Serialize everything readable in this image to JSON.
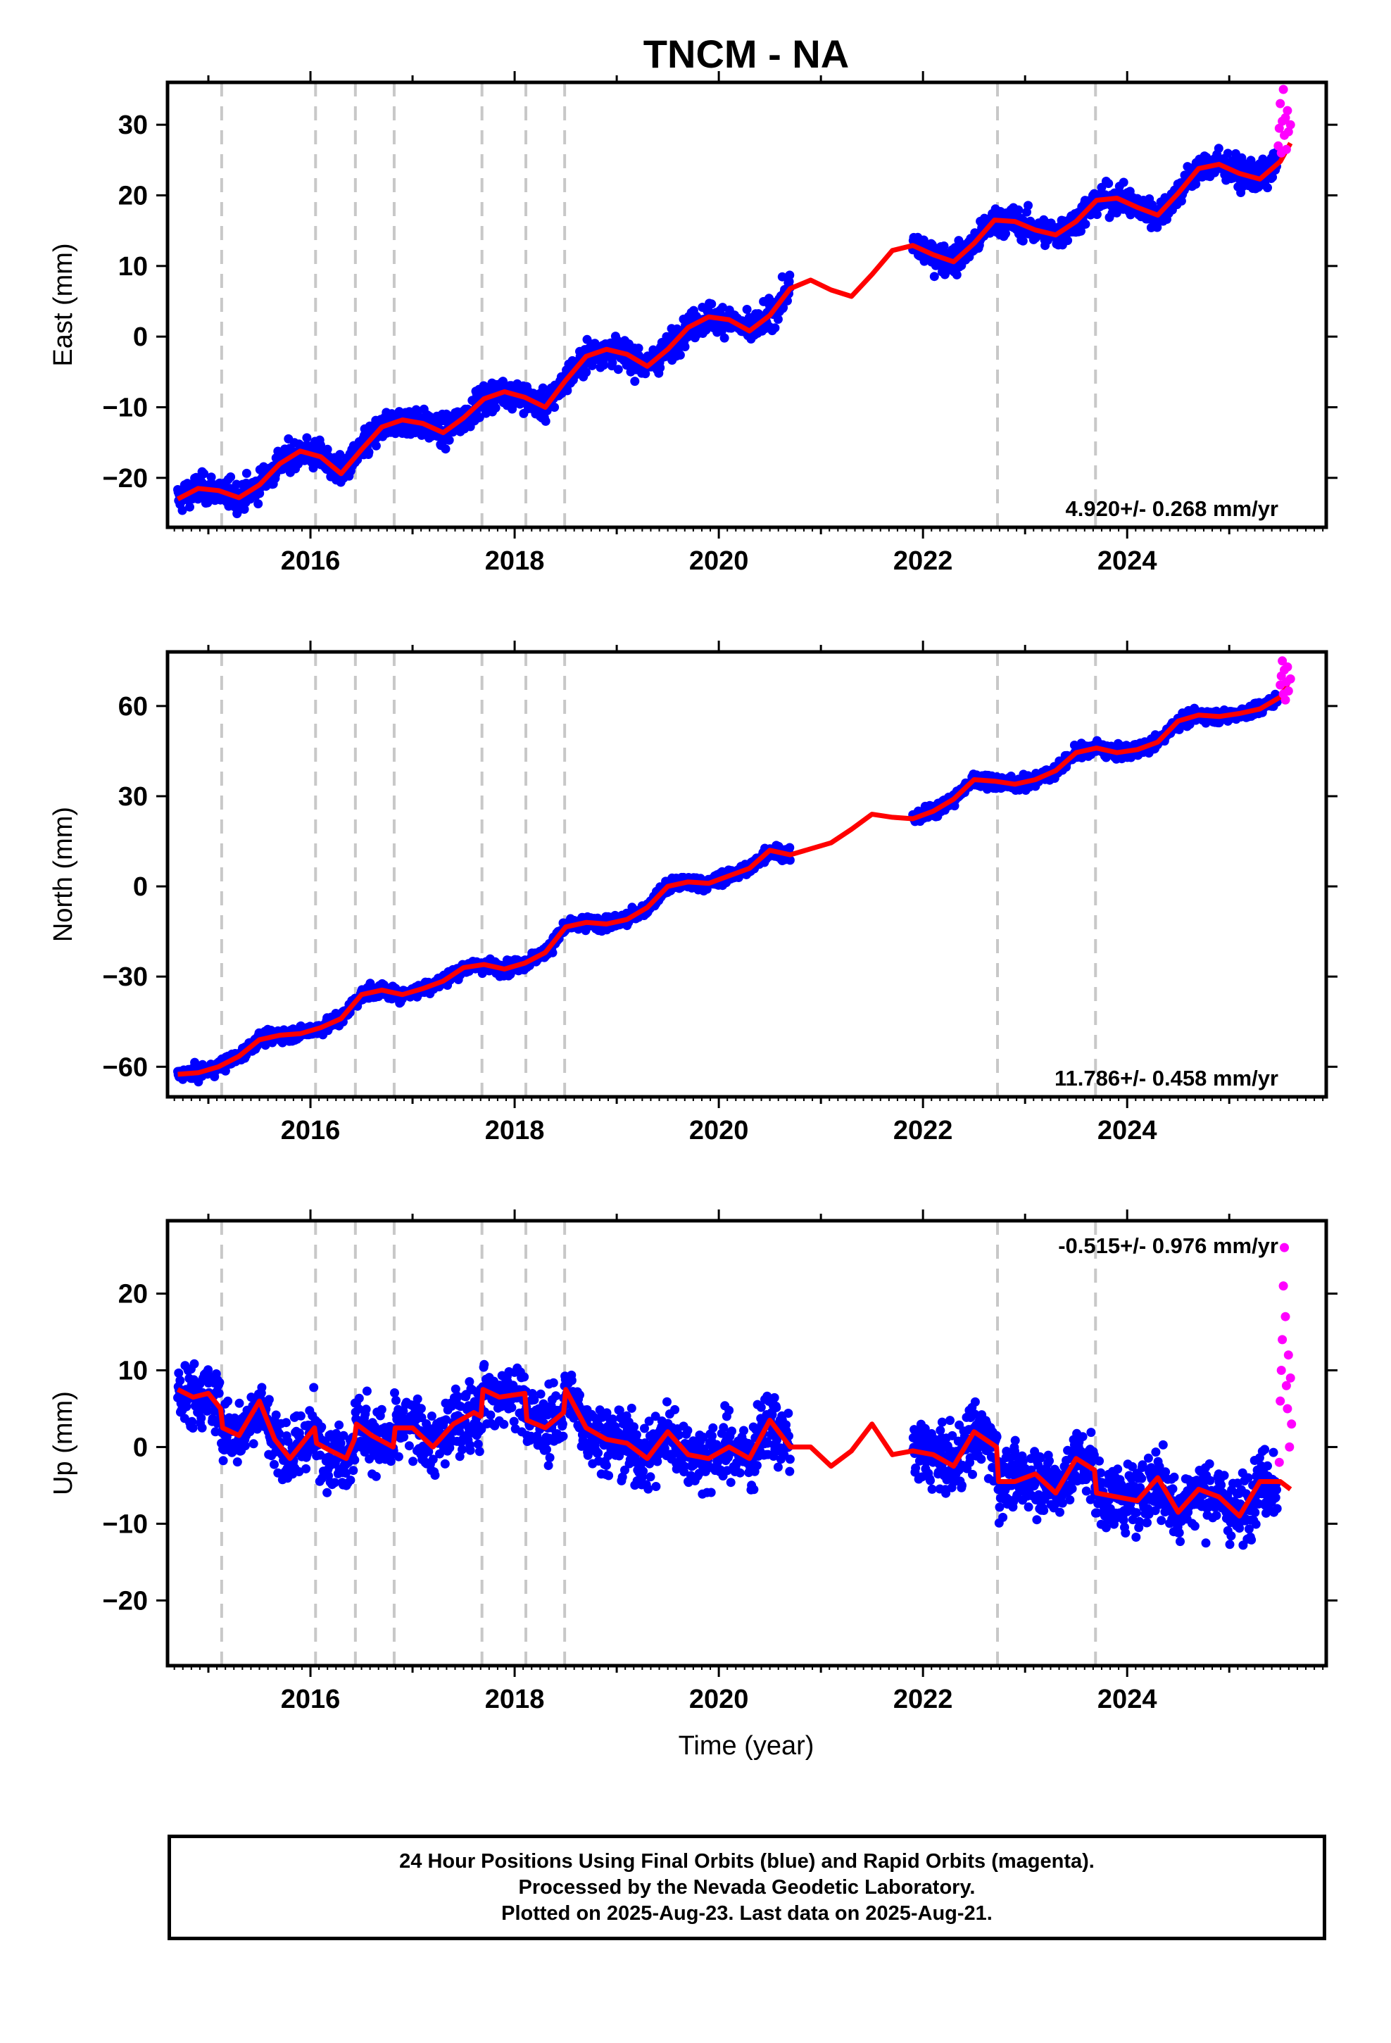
{
  "title": "TNCM - NA",
  "xlabel": "Time (year)",
  "colors": {
    "final_points": "#0000ff",
    "rapid_points": "#ff00ff",
    "model": "#ff0000",
    "event_lines": "#c8c8c8"
  },
  "footer": {
    "line1": "24 Hour Positions Using Final Orbits (blue) and Rapid Orbits (magenta).",
    "line2": "Processed by the Nevada Geodetic Laboratory.",
    "line3": "Plotted on 2025-Aug-23. Last data on 2025-Aug-21."
  },
  "chart_data": [
    {
      "type": "scatter",
      "component": "East",
      "ylabel": "East (mm)",
      "rate_label": "4.920+/- 0.268 mm/yr",
      "xlim": [
        2014.6,
        2025.95
      ],
      "ylim": [
        -27,
        36
      ],
      "x_ticks": [
        2016,
        2018,
        2020,
        2022,
        2024
      ],
      "y_ticks": [
        -20,
        -10,
        0,
        10,
        20,
        30
      ],
      "grid": false,
      "event_lines": [
        2015.13,
        2016.05,
        2016.44,
        2016.82,
        2017.68,
        2018.11,
        2018.49,
        2022.73,
        2023.69
      ],
      "data_gap": [
        2020.7,
        2021.9
      ],
      "series": [
        {
          "name": "model",
          "x": [
            2014.7,
            2014.9,
            2015.1,
            2015.3,
            2015.5,
            2015.7,
            2015.9,
            2016.1,
            2016.3,
            2016.5,
            2016.7,
            2016.9,
            2017.1,
            2017.3,
            2017.5,
            2017.7,
            2017.9,
            2018.1,
            2018.3,
            2018.5,
            2018.7,
            2018.9,
            2019.1,
            2019.3,
            2019.5,
            2019.7,
            2019.9,
            2020.1,
            2020.3,
            2020.5,
            2020.7,
            2020.9,
            2021.1,
            2021.3,
            2021.5,
            2021.7,
            2021.9,
            2022.1,
            2022.3,
            2022.5,
            2022.7,
            2022.9,
            2023.1,
            2023.3,
            2023.5,
            2023.7,
            2023.9,
            2024.1,
            2024.3,
            2024.5,
            2024.7,
            2024.9,
            2025.1,
            2025.3,
            2025.5,
            2025.6
          ],
          "y": [
            -23,
            -21.5,
            -21.8,
            -22.8,
            -21,
            -18,
            -16.2,
            -17,
            -19.4,
            -16,
            -12.8,
            -11.8,
            -12.3,
            -13.6,
            -11.5,
            -8.8,
            -7.8,
            -8.6,
            -10,
            -6.2,
            -2.8,
            -1.8,
            -2.5,
            -4.2,
            -1.8,
            1.3,
            2.8,
            2.4,
            0.8,
            3,
            6.8,
            8,
            6.6,
            5.7,
            8.8,
            12.2,
            12.9,
            11.6,
            10.6,
            13.2,
            16.5,
            16.3,
            15.1,
            14.4,
            16.3,
            19.3,
            19.6,
            18.3,
            17.2,
            20.3,
            23.8,
            24.4,
            23.1,
            22.3,
            24.8,
            27.4
          ]
        },
        {
          "name": "rapid",
          "x": [
            2025.48,
            2025.49,
            2025.5,
            2025.51,
            2025.52,
            2025.53,
            2025.54,
            2025.55,
            2025.56,
            2025.57,
            2025.58,
            2025.6
          ],
          "y": [
            27,
            29.5,
            33,
            26,
            30.5,
            35,
            28.5,
            31,
            26.5,
            32,
            29,
            30
          ]
        }
      ]
    },
    {
      "type": "scatter",
      "component": "North",
      "ylabel": "North (mm)",
      "rate_label": "11.786+/- 0.458 mm/yr",
      "xlim": [
        2014.6,
        2025.95
      ],
      "ylim": [
        -70,
        78
      ],
      "x_ticks": [
        2016,
        2018,
        2020,
        2022,
        2024
      ],
      "y_ticks": [
        -60,
        -30,
        0,
        30,
        60
      ],
      "grid": false,
      "event_lines": [
        2015.13,
        2016.05,
        2016.44,
        2016.82,
        2017.68,
        2018.11,
        2018.49,
        2022.73,
        2023.69
      ],
      "data_gap": [
        2020.7,
        2021.9
      ],
      "series": [
        {
          "name": "model",
          "x": [
            2014.7,
            2014.9,
            2015.1,
            2015.3,
            2015.5,
            2015.7,
            2015.9,
            2016.1,
            2016.3,
            2016.5,
            2016.7,
            2016.9,
            2017.1,
            2017.3,
            2017.5,
            2017.7,
            2017.9,
            2018.1,
            2018.3,
            2018.5,
            2018.7,
            2018.9,
            2019.1,
            2019.3,
            2019.5,
            2019.7,
            2019.9,
            2020.1,
            2020.3,
            2020.5,
            2020.7,
            2020.9,
            2021.1,
            2021.3,
            2021.5,
            2021.7,
            2021.9,
            2022.1,
            2022.3,
            2022.5,
            2022.7,
            2022.9,
            2023.1,
            2023.3,
            2023.5,
            2023.7,
            2023.9,
            2024.1,
            2024.3,
            2024.5,
            2024.7,
            2024.9,
            2025.1,
            2025.3,
            2025.5,
            2025.6
          ],
          "y": [
            -62.5,
            -62,
            -60,
            -56.5,
            -51,
            -49.5,
            -49,
            -47,
            -44,
            -36,
            -34.5,
            -36,
            -34,
            -31.5,
            -27,
            -26,
            -27.5,
            -25.5,
            -22,
            -13.5,
            -12,
            -12.5,
            -11,
            -7,
            0,
            1.5,
            1,
            3.5,
            6,
            12,
            10.5,
            12.5,
            14.5,
            19,
            24,
            23,
            22.5,
            25,
            29,
            35.5,
            35,
            34,
            35.5,
            38.5,
            44.5,
            46,
            44.5,
            45.5,
            48,
            55,
            57,
            56.5,
            57.5,
            59,
            63,
            69
          ]
        },
        {
          "name": "rapid",
          "x": [
            2025.5,
            2025.51,
            2025.52,
            2025.53,
            2025.54,
            2025.55,
            2025.56,
            2025.57,
            2025.58,
            2025.6
          ],
          "y": [
            67,
            70,
            75,
            64,
            72,
            62,
            68,
            73,
            65,
            69
          ]
        }
      ]
    },
    {
      "type": "scatter",
      "component": "Up",
      "ylabel": "Up (mm)",
      "rate_label": "-0.515+/- 0.976 mm/yr",
      "xlim": [
        2014.6,
        2025.95
      ],
      "ylim": [
        -28.5,
        29.5
      ],
      "x_ticks": [
        2016,
        2018,
        2020,
        2022,
        2024
      ],
      "y_ticks": [
        -20,
        -10,
        0,
        10,
        20
      ],
      "grid": false,
      "event_lines": [
        2015.13,
        2016.05,
        2016.44,
        2016.82,
        2017.68,
        2018.11,
        2018.49,
        2022.73,
        2023.69
      ],
      "data_gap": [
        2020.7,
        2021.9
      ],
      "series": [
        {
          "name": "model",
          "x": [
            2014.7,
            2014.85,
            2015,
            2015.12,
            2015.14,
            2015.3,
            2015.5,
            2015.65,
            2015.8,
            2016.04,
            2016.06,
            2016.2,
            2016.35,
            2016.43,
            2016.45,
            2016.6,
            2016.81,
            2016.83,
            2017,
            2017.2,
            2017.4,
            2017.6,
            2017.67,
            2017.69,
            2017.85,
            2018.1,
            2018.12,
            2018.3,
            2018.48,
            2018.5,
            2018.7,
            2018.9,
            2019.1,
            2019.3,
            2019.5,
            2019.7,
            2019.9,
            2020.1,
            2020.3,
            2020.5,
            2020.7,
            2020.9,
            2021.1,
            2021.3,
            2021.5,
            2021.7,
            2021.9,
            2022.1,
            2022.3,
            2022.5,
            2022.72,
            2022.74,
            2022.9,
            2023.1,
            2023.3,
            2023.5,
            2023.68,
            2023.7,
            2023.9,
            2024.1,
            2024.3,
            2024.5,
            2024.7,
            2024.9,
            2025.1,
            2025.3,
            2025.5,
            2025.6
          ],
          "y": [
            7.5,
            6.5,
            7,
            5,
            2.5,
            1.5,
            6,
            1,
            -1.5,
            2.5,
            0.5,
            -0.5,
            -1.5,
            1,
            3,
            1.5,
            0,
            2.5,
            2.5,
            0,
            3,
            4.5,
            4,
            7.5,
            6.5,
            7,
            3.5,
            2.5,
            4.5,
            7.5,
            2.5,
            1,
            0.5,
            -1.5,
            2,
            -1,
            -1.5,
            0,
            -1.5,
            3.5,
            0,
            0,
            -2.5,
            -0.5,
            3,
            -1,
            -0.5,
            -1,
            -2.5,
            2,
            0,
            -4.5,
            -4.5,
            -3.5,
            -6,
            -1.5,
            -3,
            -6,
            -6.5,
            -7,
            -4,
            -8.5,
            -5.5,
            -6.5,
            -9,
            -4.5,
            -4.5,
            -5.5
          ]
        },
        {
          "name": "rapid",
          "x": [
            2025.49,
            2025.5,
            2025.51,
            2025.52,
            2025.53,
            2025.54,
            2025.55,
            2025.56,
            2025.57,
            2025.58,
            2025.59,
            2025.6,
            2025.61
          ],
          "y": [
            -2,
            6,
            10,
            14,
            21,
            26,
            17,
            8,
            5,
            12,
            0,
            9,
            3
          ]
        }
      ]
    }
  ]
}
